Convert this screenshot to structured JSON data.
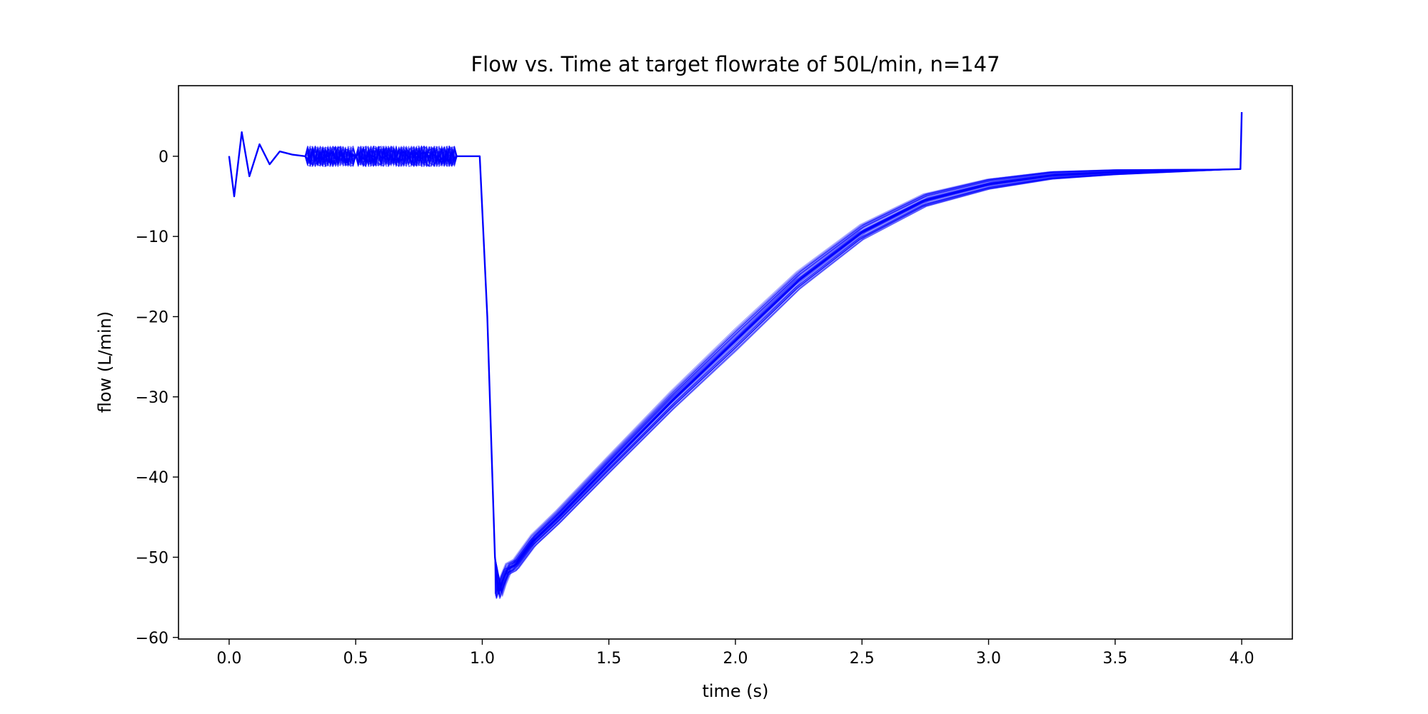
{
  "chart_data": {
    "type": "line",
    "title": "Flow vs. Time at target flowrate of 50L/min, n=147",
    "xlabel": "time (s)",
    "ylabel": "flow (L/min)",
    "xlim": [
      -0.2,
      4.2
    ],
    "ylim": [
      -60.2,
      8.8
    ],
    "xticks": [
      0.0,
      0.5,
      1.0,
      1.5,
      2.0,
      2.5,
      3.0,
      3.5,
      4.0
    ],
    "xtick_labels": [
      "0.0",
      "0.5",
      "1.0",
      "1.5",
      "2.0",
      "2.5",
      "3.0",
      "3.5",
      "4.0"
    ],
    "yticks": [
      0,
      -10,
      -20,
      -30,
      -40,
      -50,
      -60
    ],
    "ytick_labels": [
      "0",
      "−10",
      "−20",
      "−30",
      "−40",
      "−50",
      "−60"
    ],
    "grid": false,
    "series_color": "#0000ff",
    "series_count": 147,
    "series": [
      {
        "x": [
          0.0,
          0.02,
          0.05,
          0.08,
          0.12,
          0.16,
          0.2,
          0.25,
          0.3,
          0.5,
          0.9,
          0.99,
          1.02,
          1.04,
          1.05,
          1.065,
          1.08,
          1.1,
          1.13,
          1.2,
          1.3,
          1.5,
          1.75,
          2.0,
          2.25,
          2.5,
          2.75,
          3.0,
          3.25,
          3.5,
          3.75,
          3.995,
          4.0
        ],
        "y": [
          0.0,
          -5.0,
          3.0,
          -2.5,
          1.5,
          -1.0,
          0.6,
          0.2,
          0.0,
          0.0,
          0.0,
          0.0,
          -20.0,
          -40.0,
          -50.0,
          -54.5,
          -53.0,
          -51.5,
          -51.0,
          -48.0,
          -45.0,
          -38.5,
          -30.5,
          -23.0,
          -15.5,
          -9.5,
          -5.5,
          -3.5,
          -2.4,
          -2.0,
          -1.8,
          -1.6,
          5.5
        ]
      }
    ]
  }
}
